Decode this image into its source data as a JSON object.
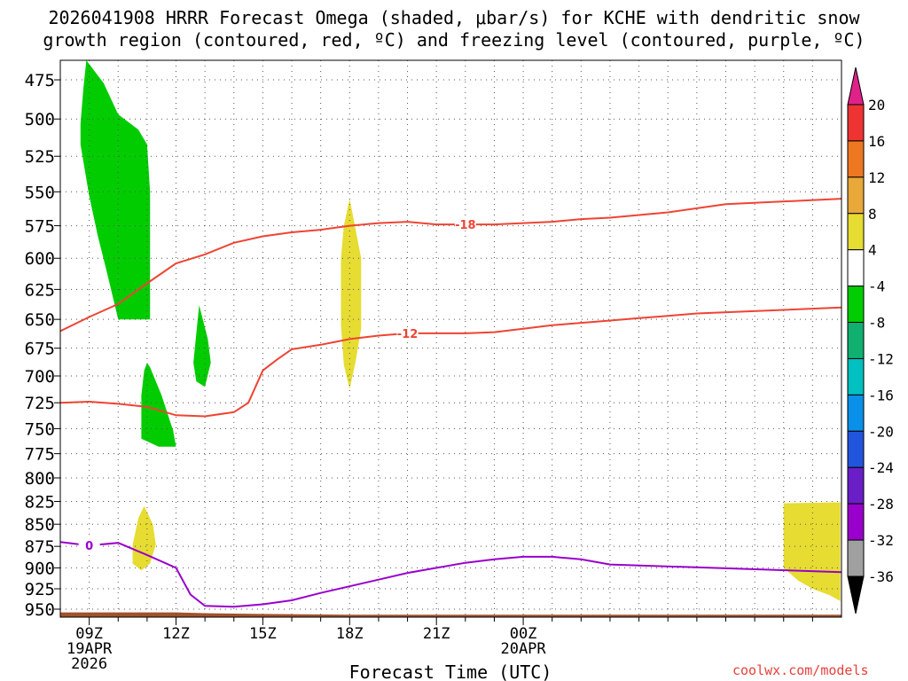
{
  "title_line1": "2026041908 HRRR Forecast Omega (shaded, μbar/s) for KCHE with dendritic snow",
  "title_line2": "growth region (contoured, red, ºC) and freezing level (contoured, purple, ºC)",
  "credit": "coolwx.com/models",
  "chart_data": {
    "type": "heatmap",
    "xlabel": "Forecast Time (UTC)",
    "ylabel": "",
    "x_hours_range": [
      -1.0,
      26.0
    ],
    "y_pressure_range": [
      463,
      960
    ],
    "grid": true,
    "y_ticks": [
      475,
      500,
      525,
      550,
      575,
      600,
      625,
      650,
      675,
      700,
      725,
      750,
      775,
      800,
      825,
      850,
      875,
      900,
      925,
      950
    ],
    "x_ticks": [
      {
        "hour": 0,
        "label": "09Z",
        "sub1": "19APR",
        "sub2": "2026"
      },
      {
        "hour": 3,
        "label": "12Z",
        "sub1": "",
        "sub2": ""
      },
      {
        "hour": 6,
        "label": "15Z",
        "sub1": "",
        "sub2": ""
      },
      {
        "hour": 9,
        "label": "18Z",
        "sub1": "",
        "sub2": ""
      },
      {
        "hour": 12,
        "label": "21Z",
        "sub1": "",
        "sub2": ""
      },
      {
        "hour": 15,
        "label": "00Z",
        "sub1": "20APR",
        "sub2": ""
      }
    ],
    "terrain": {
      "color": "#a0522d",
      "points": [
        [
          -1.0,
          954
        ],
        [
          3.0,
          954
        ],
        [
          4.0,
          955
        ],
        [
          6.0,
          956
        ],
        [
          9.0,
          957
        ],
        [
          12.0,
          957
        ],
        [
          26.0,
          957
        ]
      ]
    },
    "omega_regions": [
      {
        "value_range": [
          -8,
          -4
        ],
        "color": "#00cc00",
        "outline": [
          [
            -0.1,
            463
          ],
          [
            0.5,
            477
          ],
          [
            1.0,
            497
          ],
          [
            1.7,
            507
          ],
          [
            2.0,
            517
          ],
          [
            2.1,
            550
          ],
          [
            2.1,
            650
          ],
          [
            1.0,
            650
          ],
          [
            0.6,
            610
          ],
          [
            0.3,
            583
          ],
          [
            0.0,
            553
          ],
          [
            -0.3,
            517
          ],
          [
            -0.3,
            503
          ],
          [
            -0.2,
            480
          ]
        ]
      },
      {
        "value_range": [
          -8,
          -4
        ],
        "color": "#00cc00",
        "outline": [
          [
            3.8,
            638
          ],
          [
            4.1,
            667
          ],
          [
            4.2,
            688
          ],
          [
            4.0,
            710
          ],
          [
            3.7,
            705
          ],
          [
            3.6,
            688
          ],
          [
            3.7,
            662
          ]
        ]
      },
      {
        "value_range": [
          -8,
          -4
        ],
        "color": "#00cc00",
        "outline": [
          [
            2.0,
            688
          ],
          [
            2.1,
            692
          ],
          [
            2.5,
            718
          ],
          [
            2.9,
            752
          ],
          [
            3.0,
            768
          ],
          [
            2.4,
            768
          ],
          [
            1.8,
            760
          ],
          [
            1.8,
            718
          ],
          [
            1.9,
            695
          ]
        ]
      },
      {
        "value_range": [
          4,
          8
        ],
        "color": "#e6dc32",
        "outline": [
          [
            9.0,
            555
          ],
          [
            9.4,
            600
          ],
          [
            9.4,
            658
          ],
          [
            9.2,
            688
          ],
          [
            9.0,
            712
          ],
          [
            8.8,
            690
          ],
          [
            8.7,
            655
          ],
          [
            8.7,
            600
          ],
          [
            8.8,
            575
          ]
        ]
      },
      {
        "value_range": [
          4,
          8
        ],
        "color": "#e6dc32",
        "outline": [
          [
            1.9,
            830
          ],
          [
            2.2,
            850
          ],
          [
            2.3,
            873
          ],
          [
            2.1,
            895
          ],
          [
            1.8,
            903
          ],
          [
            1.5,
            895
          ],
          [
            1.5,
            873
          ],
          [
            1.7,
            843
          ]
        ]
      },
      {
        "value_range": [
          4,
          8
        ],
        "color": "#e6dc32",
        "outline": [
          [
            24.0,
            827
          ],
          [
            25.96,
            826
          ],
          [
            25.96,
            940
          ],
          [
            25.6,
            933
          ],
          [
            25.0,
            925
          ],
          [
            24.5,
            915
          ],
          [
            24.0,
            900
          ]
        ]
      }
    ],
    "contours": [
      {
        "label": "-18",
        "color": "#ee4433",
        "label_at": [
          13.0,
          574
        ],
        "points": [
          [
            -1.0,
            660
          ],
          [
            0.0,
            648
          ],
          [
            1.0,
            637
          ],
          [
            2.0,
            620
          ],
          [
            3.0,
            604
          ],
          [
            4.0,
            597
          ],
          [
            5.0,
            588
          ],
          [
            6.0,
            583
          ],
          [
            7.0,
            580
          ],
          [
            8.0,
            578
          ],
          [
            9.0,
            575
          ],
          [
            10.0,
            573
          ],
          [
            11.0,
            572
          ],
          [
            12.0,
            574
          ],
          [
            13.0,
            574
          ],
          [
            14.0,
            574
          ],
          [
            15.0,
            573
          ],
          [
            16.0,
            572
          ],
          [
            17.0,
            570
          ],
          [
            18.0,
            569
          ],
          [
            19.0,
            567
          ],
          [
            20.0,
            565
          ],
          [
            21.0,
            562
          ],
          [
            22.0,
            559
          ],
          [
            26.0,
            555
          ]
        ]
      },
      {
        "label": "-12",
        "color": "#ee4433",
        "label_at": [
          11.0,
          662
        ],
        "points": [
          [
            -1.0,
            725
          ],
          [
            0.0,
            724
          ],
          [
            1.0,
            726
          ],
          [
            2.0,
            729
          ],
          [
            3.0,
            737
          ],
          [
            4.0,
            738
          ],
          [
            5.0,
            734
          ],
          [
            5.5,
            725
          ],
          [
            6.0,
            695
          ],
          [
            6.5,
            685
          ],
          [
            7.0,
            676
          ],
          [
            8.0,
            672
          ],
          [
            9.0,
            667
          ],
          [
            10.0,
            664
          ],
          [
            11.0,
            662
          ],
          [
            12.0,
            662
          ],
          [
            13.0,
            662
          ],
          [
            14.0,
            661
          ],
          [
            15.0,
            658
          ],
          [
            16.0,
            655
          ],
          [
            17.0,
            653
          ],
          [
            18.0,
            651
          ],
          [
            19.0,
            649
          ],
          [
            20.0,
            647
          ],
          [
            21.0,
            645
          ],
          [
            26.0,
            640
          ]
        ]
      },
      {
        "label": "0",
        "color": "#9900cc",
        "label_at": [
          0.0,
          874
        ],
        "points": [
          [
            -1.0,
            870
          ],
          [
            0.0,
            874
          ],
          [
            1.0,
            871
          ],
          [
            2.0,
            885
          ],
          [
            3.0,
            900
          ],
          [
            3.5,
            932
          ],
          [
            4.0,
            946
          ],
          [
            5.0,
            947
          ],
          [
            6.0,
            944
          ],
          [
            7.0,
            939
          ],
          [
            8.0,
            930
          ],
          [
            9.0,
            922
          ],
          [
            10.0,
            914
          ],
          [
            11.0,
            906
          ],
          [
            12.0,
            900
          ],
          [
            13.0,
            894
          ],
          [
            14.0,
            890
          ],
          [
            15.0,
            887
          ],
          [
            16.0,
            887
          ],
          [
            17.0,
            890
          ],
          [
            18.0,
            896
          ],
          [
            26.0,
            905
          ]
        ]
      }
    ],
    "colorbar": {
      "labels": [
        "20",
        "16",
        "12",
        "8",
        "4",
        "-4",
        "-8",
        "-12",
        "-16",
        "-20",
        "-24",
        "-28",
        "-32",
        "-36"
      ],
      "top_color": "#e0218a",
      "bottom_color": "#000000",
      "band_colors": [
        "#ee3333",
        "#ee7722",
        "#e8a83a",
        "#e6dc32",
        "#ffffff",
        "#00cc00",
        "#10b070",
        "#00c0c0",
        "#0a90e8",
        "#2255dd",
        "#6a1ec8",
        "#9900cc",
        "#a0a0a0"
      ]
    }
  }
}
